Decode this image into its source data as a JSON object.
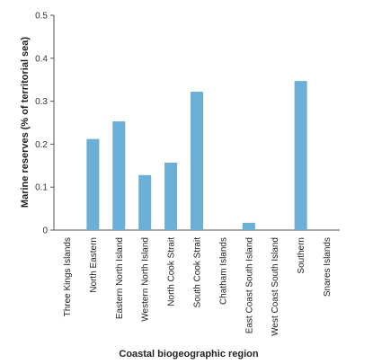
{
  "chart_data": {
    "type": "bar",
    "xlabel": "Coastal biogeographic region",
    "ylabel": "Marine reserves (% of territorial sea)",
    "ylim": [
      0,
      0.5
    ],
    "yticks": [
      "0",
      "0.1",
      "0.2",
      "0.3",
      "0.4",
      "0.5"
    ],
    "grid": false,
    "bar_color": "#6baed6",
    "categories": [
      "Three Kings Islands",
      "North Eastern",
      "Eastern North Island",
      "Western North Island",
      "North Cook Strait",
      "South Cook Strait",
      "Chatham Islands",
      "East Coast South Island",
      "West Coast South Island",
      "Southern",
      "Snares Islands"
    ],
    "values": [
      0,
      0.212,
      0.253,
      0.128,
      0.157,
      0.322,
      0,
      0.017,
      0,
      0.347,
      0
    ]
  }
}
